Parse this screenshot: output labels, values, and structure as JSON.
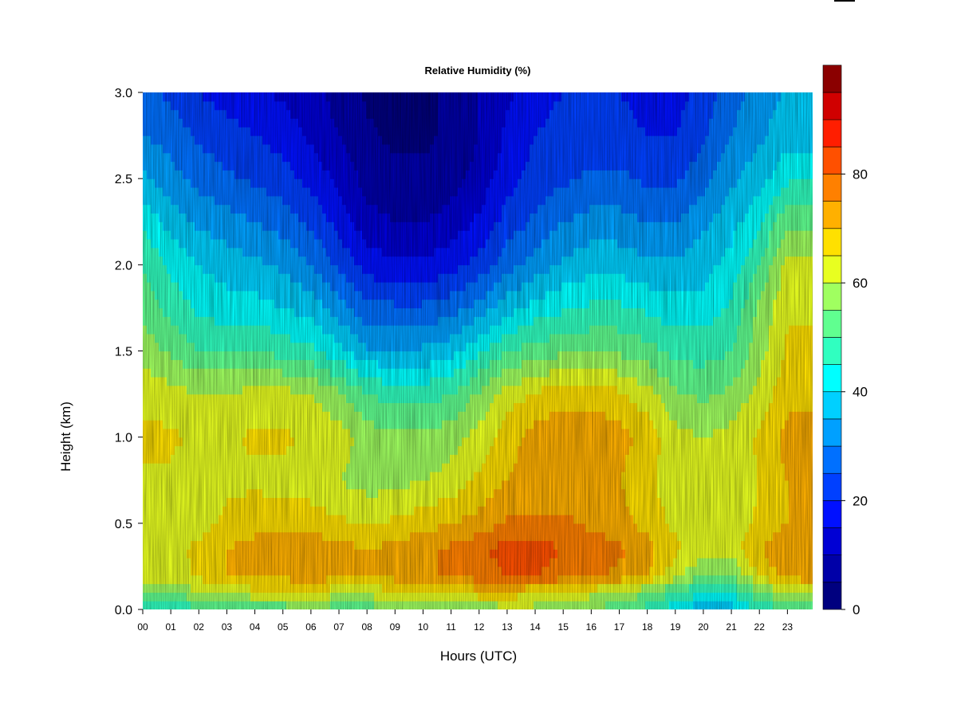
{
  "chart_data": {
    "type": "heatmap",
    "title": "Relative Humidity (%)",
    "xlabel": "Hours (UTC)",
    "ylabel": "Height (km)",
    "x_ticks": [
      "00",
      "01",
      "02",
      "03",
      "04",
      "05",
      "06",
      "07",
      "08",
      "09",
      "10",
      "11",
      "12",
      "13",
      "14",
      "15",
      "16",
      "17",
      "18",
      "19",
      "20",
      "21",
      "22",
      "23"
    ],
    "xlim": [
      0,
      23.9
    ],
    "y_ticks": [
      "0.0",
      "0.5",
      "1.0",
      "1.5",
      "2.0",
      "2.5",
      "3.0"
    ],
    "ylim": [
      0,
      3.0
    ],
    "colorbar": {
      "min": 0,
      "max": 95,
      "step": 5,
      "tick_values": [
        0,
        20,
        40,
        60,
        80
      ],
      "tick_labels": [
        "0",
        "20",
        "40",
        "60",
        "80"
      ],
      "colors": [
        "#00007F",
        "#0000A8",
        "#0000D4",
        "#0010FF",
        "#0040FF",
        "#0070FF",
        "#00A0FF",
        "#00D0FF",
        "#00FFFF",
        "#30FFC0",
        "#60FF90",
        "#A0FF60",
        "#E8FF20",
        "#FFE000",
        "#FFB000",
        "#FF8000",
        "#FF5000",
        "#FF1E00",
        "#D00000",
        "#8B0000"
      ]
    },
    "height_levels_km": [
      0.0,
      0.1,
      0.2,
      0.35,
      0.5,
      0.75,
      1.0,
      1.25,
      1.5,
      1.75,
      2.0,
      2.25,
      2.5,
      2.75,
      3.0
    ],
    "hours": [
      0,
      1,
      2,
      3,
      4,
      5,
      6,
      7,
      8,
      9,
      10,
      11,
      12,
      13,
      14,
      15,
      16,
      17,
      18,
      19,
      20,
      21,
      22,
      23,
      23.9
    ],
    "rh_values": [
      [
        45,
        45,
        48,
        50,
        52,
        52,
        54,
        52,
        52,
        54,
        56,
        55,
        56,
        58,
        58,
        56,
        54,
        52,
        48,
        42,
        36,
        38,
        45,
        50,
        52
      ],
      [
        55,
        55,
        60,
        62,
        63,
        63,
        64,
        62,
        62,
        64,
        65,
        66,
        68,
        68,
        66,
        64,
        62,
        60,
        55,
        50,
        45,
        45,
        55,
        60,
        62
      ],
      [
        62,
        62,
        66,
        70,
        72,
        72,
        73,
        72,
        70,
        72,
        74,
        76,
        78,
        80,
        80,
        78,
        76,
        74,
        70,
        62,
        55,
        55,
        66,
        72,
        74
      ],
      [
        63,
        64,
        66,
        70,
        72,
        72,
        73,
        72,
        70,
        72,
        74,
        76,
        79,
        82,
        82,
        80,
        78,
        76,
        72,
        66,
        62,
        62,
        70,
        75,
        75
      ],
      [
        62,
        62,
        63,
        66,
        68,
        68,
        68,
        66,
        64,
        66,
        68,
        70,
        72,
        76,
        76,
        76,
        74,
        72,
        68,
        64,
        62,
        62,
        66,
        70,
        70
      ],
      [
        64,
        64,
        62,
        64,
        64,
        63,
        62,
        60,
        58,
        58,
        60,
        62,
        66,
        70,
        72,
        72,
        72,
        70,
        66,
        62,
        60,
        62,
        65,
        70,
        70
      ],
      [
        66,
        66,
        64,
        64,
        66,
        66,
        64,
        62,
        58,
        56,
        56,
        58,
        62,
        68,
        72,
        74,
        74,
        72,
        68,
        62,
        60,
        62,
        66,
        72,
        72
      ],
      [
        64,
        62,
        60,
        60,
        62,
        62,
        60,
        56,
        50,
        48,
        48,
        50,
        56,
        62,
        66,
        68,
        68,
        66,
        62,
        56,
        54,
        56,
        62,
        68,
        68
      ],
      [
        58,
        54,
        50,
        50,
        50,
        48,
        46,
        42,
        36,
        36,
        36,
        38,
        44,
        50,
        52,
        54,
        54,
        54,
        52,
        48,
        48,
        50,
        58,
        66,
        66
      ],
      [
        54,
        48,
        44,
        42,
        42,
        40,
        38,
        32,
        26,
        26,
        26,
        28,
        32,
        38,
        42,
        44,
        46,
        46,
        44,
        42,
        42,
        46,
        56,
        64,
        64
      ],
      [
        50,
        44,
        40,
        38,
        36,
        34,
        30,
        24,
        18,
        16,
        16,
        18,
        22,
        28,
        32,
        36,
        38,
        38,
        36,
        36,
        38,
        42,
        50,
        62,
        62
      ],
      [
        44,
        38,
        34,
        32,
        30,
        28,
        24,
        18,
        12,
        10,
        10,
        12,
        16,
        22,
        26,
        30,
        32,
        32,
        30,
        30,
        34,
        38,
        44,
        54,
        54
      ],
      [
        36,
        32,
        28,
        26,
        24,
        22,
        18,
        14,
        8,
        6,
        6,
        8,
        12,
        18,
        22,
        24,
        26,
        26,
        24,
        24,
        28,
        34,
        38,
        44,
        44
      ],
      [
        30,
        28,
        24,
        22,
        20,
        18,
        14,
        10,
        6,
        4,
        4,
        6,
        10,
        16,
        20,
        22,
        22,
        22,
        20,
        20,
        24,
        30,
        34,
        38,
        38
      ],
      [
        26,
        24,
        20,
        18,
        16,
        14,
        12,
        8,
        4,
        4,
        4,
        6,
        10,
        14,
        18,
        20,
        20,
        20,
        18,
        18,
        22,
        28,
        32,
        36,
        36
      ]
    ]
  }
}
